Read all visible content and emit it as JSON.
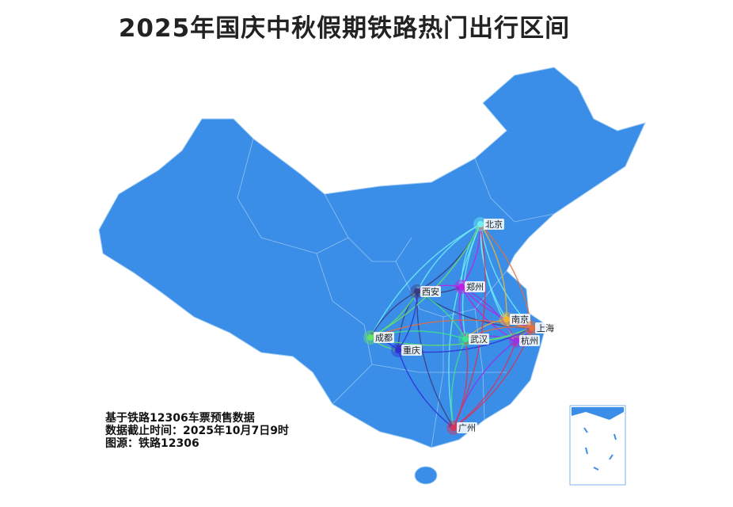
{
  "title": "2025年国庆中秋假期铁路热门出行区间",
  "notes": [
    "基于铁路12306车票预售数据",
    "数据截止时间：2025年10月7日9时",
    "图源：铁路12306"
  ],
  "map": {
    "region": "China",
    "land_color": "#3a8ee8",
    "border_color": "#a8d0f5",
    "cities": [
      {
        "name": "北京",
        "color": "#6ff0f5"
      },
      {
        "name": "郑州",
        "color": "#c21fe6"
      },
      {
        "name": "西安",
        "color": "#3b3b80"
      },
      {
        "name": "南京",
        "color": "#f2b531"
      },
      {
        "name": "上海",
        "color": "#e36f3d"
      },
      {
        "name": "杭州",
        "color": "#9a2fe3"
      },
      {
        "name": "武汉",
        "color": "#3fe38a"
      },
      {
        "name": "成都",
        "color": "#66e266"
      },
      {
        "name": "重庆",
        "color": "#2f2fd6"
      },
      {
        "name": "广州",
        "color": "#d9325a"
      }
    ],
    "routes": [
      [
        "北京",
        "上海"
      ],
      [
        "北京",
        "南京"
      ],
      [
        "北京",
        "杭州"
      ],
      [
        "北京",
        "郑州"
      ],
      [
        "北京",
        "西安"
      ],
      [
        "北京",
        "武汉"
      ],
      [
        "北京",
        "成都"
      ],
      [
        "北京",
        "广州"
      ],
      [
        "西安",
        "北京"
      ],
      [
        "西安",
        "成都"
      ],
      [
        "西安",
        "重庆"
      ],
      [
        "西安",
        "郑州"
      ],
      [
        "西安",
        "上海"
      ],
      [
        "西安",
        "广州"
      ],
      [
        "郑州",
        "北京"
      ],
      [
        "郑州",
        "西安"
      ],
      [
        "郑州",
        "武汉"
      ],
      [
        "郑州",
        "上海"
      ],
      [
        "郑州",
        "杭州"
      ],
      [
        "南京",
        "北京"
      ],
      [
        "南京",
        "上海"
      ],
      [
        "南京",
        "武汉"
      ],
      [
        "南京",
        "杭州"
      ],
      [
        "上海",
        "北京"
      ],
      [
        "上海",
        "南京"
      ],
      [
        "上海",
        "杭州"
      ],
      [
        "上海",
        "武汉"
      ],
      [
        "上海",
        "成都"
      ],
      [
        "杭州",
        "上海"
      ],
      [
        "杭州",
        "郑州"
      ],
      [
        "杭州",
        "广州"
      ],
      [
        "杭州",
        "武汉"
      ],
      [
        "武汉",
        "广州"
      ],
      [
        "武汉",
        "成都"
      ],
      [
        "武汉",
        "上海"
      ],
      [
        "武汉",
        "西安"
      ],
      [
        "成都",
        "重庆"
      ],
      [
        "成都",
        "北京"
      ],
      [
        "成都",
        "上海"
      ],
      [
        "成都",
        "西安"
      ],
      [
        "重庆",
        "成都"
      ],
      [
        "重庆",
        "西安"
      ],
      [
        "重庆",
        "上海"
      ],
      [
        "重庆",
        "广州"
      ],
      [
        "广州",
        "武汉"
      ],
      [
        "广州",
        "上海"
      ],
      [
        "广州",
        "北京"
      ],
      [
        "广州",
        "杭州"
      ]
    ]
  }
}
